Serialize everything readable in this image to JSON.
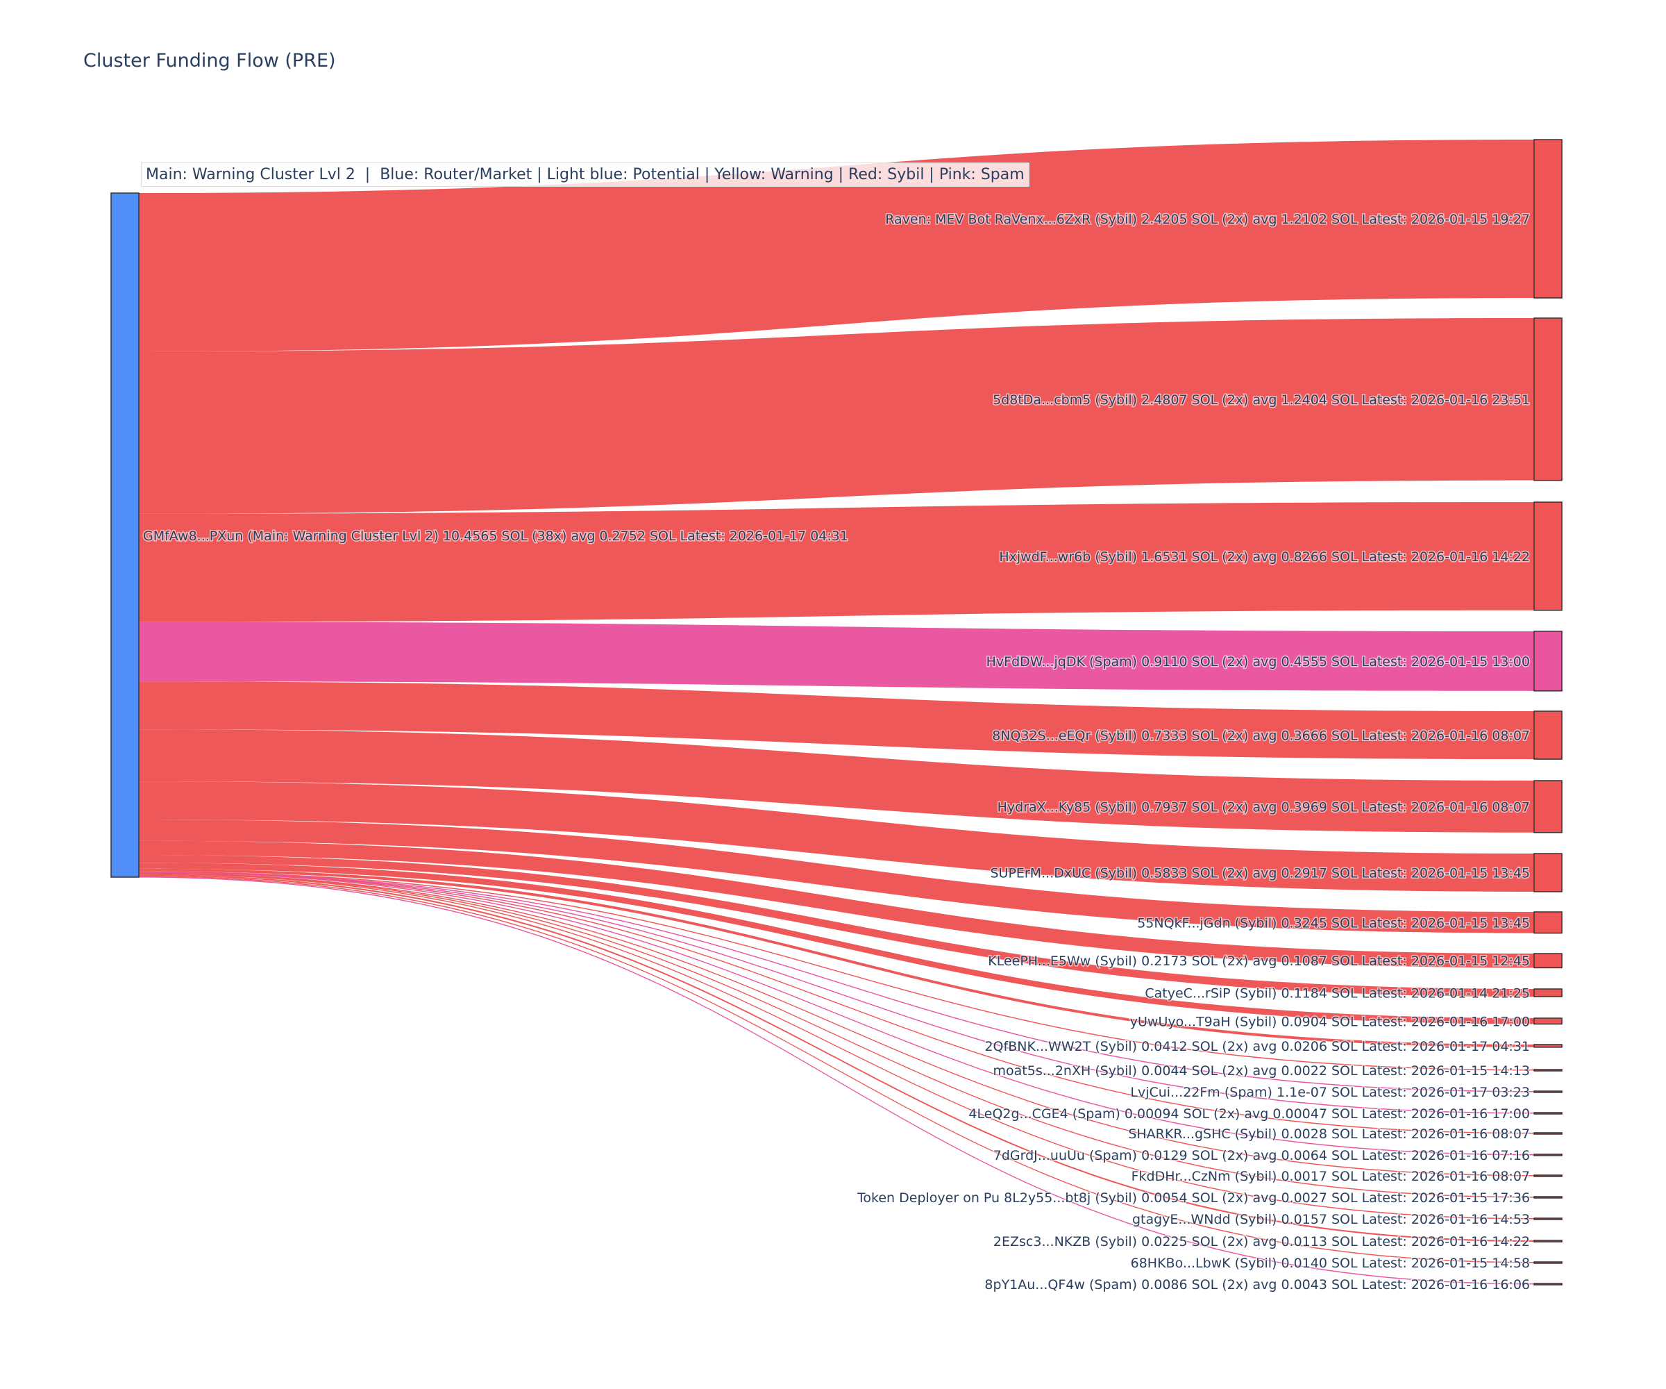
{
  "chart_data": {
    "type": "sankey",
    "title": "Cluster Funding Flow (PRE)",
    "legend_text": "Main: Warning Cluster Lvl 2  |  Blue: Router/Market | Light blue: Potential | Yellow: Warning | Red: Sybil | Pink: Spam",
    "colors": {
      "main": "#4f8ef7",
      "sybil": "#ef5555",
      "spam": "#ea559f",
      "border": "#333333"
    },
    "source": {
      "label": "GMfAw8...PXun (Main: Warning Cluster Lvl 2) 10.4565 SOL (38x) avg 0.2752 SOL Latest: 2026-01-17 04:31",
      "value": 10.4565,
      "category": "main"
    },
    "targets": [
      {
        "label": "Raven: MEV Bot RaVenx...6ZxR (Sybil) 2.4205 SOL (2x) avg 1.2102 SOL Latest: 2026-01-15 19:27",
        "value": 2.4205,
        "category": "sybil"
      },
      {
        "label": "5d8tDa...cbm5 (Sybil) 2.4807 SOL (2x) avg 1.2404 SOL Latest: 2026-01-16 23:51",
        "value": 2.4807,
        "category": "sybil"
      },
      {
        "label": "HxjwdF...wr6b (Sybil) 1.6531 SOL (2x) avg 0.8266 SOL Latest: 2026-01-16 14:22",
        "value": 1.6531,
        "category": "sybil"
      },
      {
        "label": "HvFdDW...jqDK (Spam) 0.9110 SOL (2x) avg 0.4555 SOL Latest: 2026-01-15 13:00",
        "value": 0.911,
        "category": "spam"
      },
      {
        "label": "8NQ32S...eEQr (Sybil) 0.7333 SOL (2x) avg 0.3666 SOL Latest: 2026-01-16 08:07",
        "value": 0.7333,
        "category": "sybil"
      },
      {
        "label": "HydraX...Ky85 (Sybil) 0.7937 SOL (2x) avg 0.3969 SOL Latest: 2026-01-16 08:07",
        "value": 0.7937,
        "category": "sybil"
      },
      {
        "label": "SUPErM...DxUC (Sybil) 0.5833 SOL (2x) avg 0.2917 SOL Latest: 2026-01-15 13:45",
        "value": 0.5833,
        "category": "sybil"
      },
      {
        "label": "55NQkF...jGdn (Sybil) 0.3245 SOL Latest: 2026-01-15 13:45",
        "value": 0.3245,
        "category": "sybil"
      },
      {
        "label": "KLeePH...E5Ww (Sybil) 0.2173 SOL (2x) avg 0.1087 SOL Latest: 2026-01-15 12:45",
        "value": 0.2173,
        "category": "sybil"
      },
      {
        "label": "CatyeC...rSiP (Sybil) 0.1184 SOL Latest: 2026-01-14 21:25",
        "value": 0.1184,
        "category": "sybil"
      },
      {
        "label": "yUwUyo...T9aH (Sybil) 0.0904 SOL Latest: 2026-01-16 17:00",
        "value": 0.0904,
        "category": "sybil"
      },
      {
        "label": "2QfBNK...WW2T (Sybil) 0.0412 SOL (2x) avg 0.0206 SOL Latest: 2026-01-17 04:31",
        "value": 0.0412,
        "category": "sybil"
      },
      {
        "label": "moat5s...2nXH (Sybil) 0.0044 SOL (2x) avg 0.0022 SOL Latest: 2026-01-15 14:13",
        "value": 0.0044,
        "category": "sybil"
      },
      {
        "label": "LvjCui...22Fm (Spam) 1.1e-07 SOL Latest: 2026-01-17 03:23",
        "value": 1.1e-07,
        "category": "spam"
      },
      {
        "label": "4LeQ2g...CGE4 (Spam) 0.00094 SOL (2x) avg 0.00047 SOL Latest: 2026-01-16 17:00",
        "value": 0.00094,
        "category": "spam"
      },
      {
        "label": "SHARKR...gSHC (Sybil) 0.0028 SOL Latest: 2026-01-16 08:07",
        "value": 0.0028,
        "category": "sybil"
      },
      {
        "label": "7dGrdJ...uuUu (Spam) 0.0129 SOL (2x) avg 0.0064 SOL Latest: 2026-01-16 07:16",
        "value": 0.0129,
        "category": "spam"
      },
      {
        "label": "FkdDHr...CzNm (Sybil) 0.0017 SOL Latest: 2026-01-16 08:07",
        "value": 0.0017,
        "category": "sybil"
      },
      {
        "label": "Token Deployer on Pu 8L2y55...bt8j (Sybil) 0.0054 SOL (2x) avg 0.0027 SOL Latest: 2026-01-15 17:36",
        "value": 0.0054,
        "category": "sybil"
      },
      {
        "label": "gtagyE...WNdd (Sybil) 0.0157 SOL Latest: 2026-01-16 14:53",
        "value": 0.0157,
        "category": "sybil"
      },
      {
        "label": "2EZsc3...NKZB (Sybil) 0.0225 SOL (2x) avg 0.0113 SOL Latest: 2026-01-16 14:22",
        "value": 0.0225,
        "category": "sybil"
      },
      {
        "label": "68HKBo...LbwK (Sybil) 0.0140 SOL Latest: 2026-01-15 14:58",
        "value": 0.014,
        "category": "sybil"
      },
      {
        "label": "8pY1Au...QF4w (Spam) 0.0086 SOL (2x) avg 0.0043 SOL Latest: 2026-01-16 16:06",
        "value": 0.0086,
        "category": "spam"
      }
    ]
  }
}
